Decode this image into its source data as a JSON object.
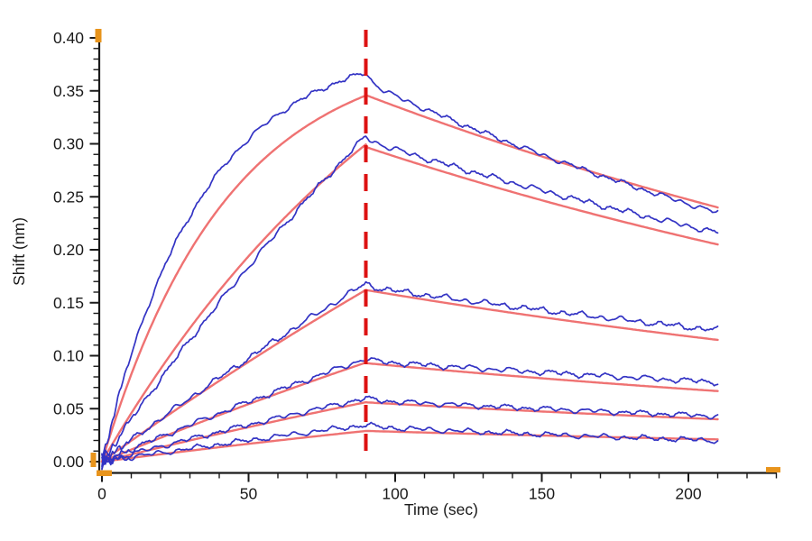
{
  "page": {
    "background_color": "#ffffff"
  },
  "chart_data": {
    "type": "line",
    "title": "",
    "xlabel": "Time (sec)",
    "ylabel": "Shift (nm)",
    "xlim": [
      0,
      230
    ],
    "ylim": [
      0.0,
      0.4
    ],
    "grid": false,
    "legend": "none",
    "x_major_ticks": [
      0,
      50,
      100,
      150,
      200
    ],
    "x_tick_labels": [
      "0",
      "50",
      "100",
      "150",
      "200"
    ],
    "x_minor_step": 10,
    "y_major_ticks": [
      0.0,
      0.05,
      0.1,
      0.15,
      0.2,
      0.25,
      0.3,
      0.35,
      0.4
    ],
    "y_tick_labels": [
      "0.00",
      "0.05",
      "0.10",
      "0.15",
      "0.20",
      "0.25",
      "0.30",
      "0.35",
      "0.40"
    ],
    "y_minor_step": 0.01,
    "event_line": {
      "x": 90,
      "color": "#dd1212",
      "style": "dashed"
    },
    "association_end_time": 90,
    "trace_end_time": 210,
    "keypoint_times": [
      0,
      15,
      30,
      45,
      60,
      75,
      90,
      120,
      150,
      180,
      210
    ],
    "series": [
      {
        "name": "data-trace-1",
        "role": "measured-data",
        "color": "#3333c4",
        "noise_amp": 0.0033,
        "seed": 1,
        "model": {
          "assoc_amplitude": 0.395,
          "assoc_rate": 0.0295,
          "peak": 0.367,
          "dissoc_rate": 0.00337,
          "post_peak_drop": 0.01
        },
        "keypoints": [
          0,
          0.141,
          0.232,
          0.29,
          0.328,
          0.357,
          0.367,
          0.322,
          0.29,
          0.261,
          0.235
        ]
      },
      {
        "name": "fit-trace-1",
        "role": "fitted-curve",
        "color": "#ef7272",
        "noise_amp": 0,
        "seed": 2,
        "model": {
          "assoc_amplitude": 0.393,
          "assoc_rate": 0.0235,
          "peak": 0.346,
          "dissoc_rate": 0.00305,
          "post_peak_drop": 0
        },
        "keypoints": [
          0,
          0.117,
          0.199,
          0.257,
          0.297,
          0.326,
          0.346,
          0.316,
          0.288,
          0.263,
          0.24
        ]
      },
      {
        "name": "data-trace-2",
        "role": "measured-data",
        "color": "#3333c4",
        "noise_amp": 0.0038,
        "seed": 3,
        "model": {
          "assoc_amplitude": 1.016,
          "assoc_rate": 0.004,
          "peak": 0.307,
          "dissoc_rate": 0.00277,
          "post_peak_drop": 0.004
        },
        "keypoints": [
          0,
          0.059,
          0.115,
          0.168,
          0.217,
          0.263,
          0.307,
          0.283,
          0.26,
          0.239,
          0.22
        ]
      },
      {
        "name": "fit-trace-2",
        "role": "fitted-curve",
        "color": "#ef7272",
        "noise_amp": 0,
        "seed": 4,
        "model": {
          "assoc_amplitude": 0.56,
          "assoc_rate": 0.0085,
          "peak": 0.297,
          "dissoc_rate": 0.00309,
          "post_peak_drop": 0
        },
        "keypoints": [
          0,
          0.067,
          0.126,
          0.179,
          0.224,
          0.263,
          0.297,
          0.271,
          0.247,
          0.225,
          0.205
        ]
      },
      {
        "name": "data-trace-3",
        "role": "measured-data",
        "color": "#3333c4",
        "noise_amp": 0.0038,
        "seed": 5,
        "model": {
          "assoc_amplitude": 0.9,
          "assoc_rate": 0.0023,
          "peak": 0.168,
          "dissoc_rate": 0.00233,
          "post_peak_drop": 0.003
        },
        "keypoints": [
          0,
          0.031,
          0.06,
          0.088,
          0.116,
          0.142,
          0.168,
          0.157,
          0.146,
          0.136,
          0.127
        ]
      },
      {
        "name": "fit-trace-3",
        "role": "fitted-curve",
        "color": "#ef7272",
        "noise_amp": 0,
        "seed": 6,
        "model": {
          "assoc_amplitude": 0.85,
          "assoc_rate": 0.00235,
          "peak": 0.162,
          "dissoc_rate": 0.00286,
          "post_peak_drop": 0
        },
        "keypoints": [
          0,
          0.029,
          0.057,
          0.084,
          0.109,
          0.135,
          0.162,
          0.149,
          0.137,
          0.125,
          0.115
        ]
      },
      {
        "name": "data-trace-4",
        "role": "measured-data",
        "color": "#3333c4",
        "noise_amp": 0.0036,
        "seed": 7,
        "model": {
          "assoc_amplitude": 0.52,
          "assoc_rate": 0.0023,
          "peak": 0.097,
          "dissoc_rate": 0.00192,
          "post_peak_drop": 0.002
        },
        "keypoints": [
          0,
          0.018,
          0.035,
          0.051,
          0.067,
          0.082,
          0.097,
          0.092,
          0.087,
          0.082,
          0.077
        ]
      },
      {
        "name": "fit-trace-4",
        "role": "fitted-curve",
        "color": "#ef7272",
        "noise_amp": 0,
        "seed": 8,
        "model": {
          "assoc_amplitude": 0.5,
          "assoc_rate": 0.0023,
          "peak": 0.093,
          "dissoc_rate": 0.00278,
          "post_peak_drop": 0
        },
        "keypoints": [
          0,
          0.017,
          0.033,
          0.049,
          0.064,
          0.079,
          0.093,
          0.086,
          0.08,
          0.073,
          0.067
        ]
      },
      {
        "name": "data-trace-5",
        "role": "measured-data",
        "color": "#3333c4",
        "noise_amp": 0.0034,
        "seed": 9,
        "model": {
          "assoc_amplitude": 0.32,
          "assoc_rate": 0.0023,
          "peak": 0.06,
          "dissoc_rate": 0.0024,
          "post_peak_drop": 0.002
        },
        "keypoints": [
          0,
          0.011,
          0.021,
          0.031,
          0.041,
          0.051,
          0.06,
          0.056,
          0.052,
          0.048,
          0.045
        ]
      },
      {
        "name": "fit-trace-5",
        "role": "fitted-curve",
        "color": "#ef7272",
        "noise_amp": 0,
        "seed": 10,
        "model": {
          "assoc_amplitude": 0.3,
          "assoc_rate": 0.0023,
          "peak": 0.056,
          "dissoc_rate": 0.0028,
          "post_peak_drop": 0
        },
        "keypoints": [
          0,
          0.01,
          0.02,
          0.029,
          0.039,
          0.047,
          0.056,
          0.052,
          0.048,
          0.044,
          0.04
        ]
      },
      {
        "name": "data-trace-6",
        "role": "measured-data",
        "color": "#3333c4",
        "noise_amp": 0.0034,
        "seed": 11,
        "model": {
          "assoc_amplitude": 0.185,
          "assoc_rate": 0.0023,
          "peak": 0.035,
          "dissoc_rate": 0.00387,
          "post_peak_drop": 0.002
        },
        "keypoints": [
          0,
          0.006,
          0.012,
          0.018,
          0.024,
          0.029,
          0.035,
          0.031,
          0.028,
          0.025,
          0.022
        ]
      },
      {
        "name": "fit-trace-6",
        "role": "fitted-curve",
        "color": "#ef7272",
        "noise_amp": 0,
        "seed": 12,
        "model": {
          "assoc_amplitude": 0.155,
          "assoc_rate": 0.0023,
          "peak": 0.029,
          "dissoc_rate": 0.00269,
          "post_peak_drop": 0
        },
        "keypoints": [
          0,
          0.005,
          0.01,
          0.015,
          0.02,
          0.025,
          0.029,
          0.027,
          0.025,
          0.023,
          0.021
        ]
      }
    ],
    "styles": {
      "axis_color": "#1a1a1a",
      "text_color": "#1a1a1a",
      "data_trace_color": "#3333c4",
      "fit_curve_color": "#ef7272",
      "event_line_color": "#dd1212",
      "range_marker_color": "#e8941c",
      "background_color": "#ffffff"
    }
  }
}
